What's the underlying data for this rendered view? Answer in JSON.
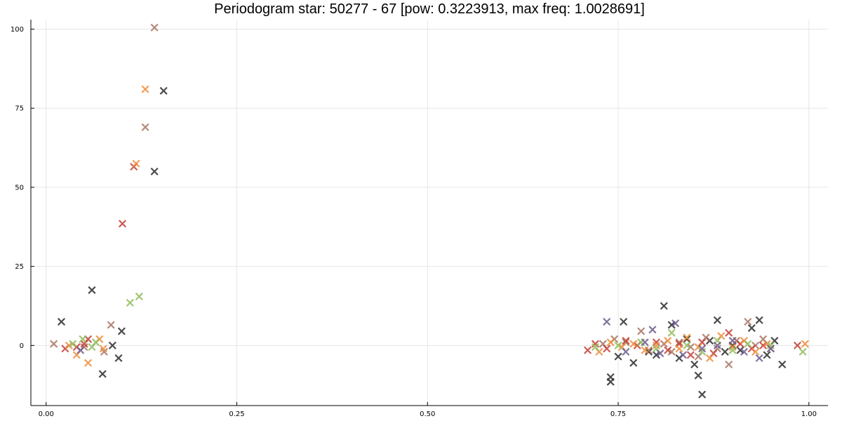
{
  "chart_data": {
    "type": "scatter",
    "title": "Periodogram star: 50277 - 67 [pow: 0.3223913, max freq: 1.0028691]",
    "xlabel": "",
    "ylabel": "",
    "xlim": [
      -0.02,
      1.025
    ],
    "ylim": [
      -19,
      103
    ],
    "x_ticks": [
      0.0,
      0.25,
      0.5,
      0.75,
      1.0
    ],
    "x_tick_labels": [
      "0.00",
      "0.25",
      "0.50",
      "0.75",
      "1.00"
    ],
    "y_ticks": [
      0,
      25,
      50,
      75,
      100
    ],
    "y_tick_labels": [
      "0",
      "25",
      "50",
      "75",
      "100"
    ],
    "grid": true,
    "legend": "none",
    "marker": "x",
    "series": [
      {
        "color": "#2b2b2b",
        "points": [
          [
            0.02,
            7.5
          ],
          [
            0.06,
            17.5
          ],
          [
            0.074,
            -9
          ],
          [
            0.087,
            0
          ],
          [
            0.095,
            -4
          ],
          [
            0.099,
            4.5
          ],
          [
            0.142,
            55
          ],
          [
            0.154,
            80.5
          ],
          [
            0.74,
            -10
          ],
          [
            0.74,
            -11.5
          ],
          [
            0.757,
            7.5
          ],
          [
            0.75,
            -3.5
          ],
          [
            0.77,
            -5.5
          ],
          [
            0.79,
            -2
          ],
          [
            0.81,
            12.5
          ],
          [
            0.82,
            6.5
          ],
          [
            0.8,
            -3
          ],
          [
            0.83,
            -4
          ],
          [
            0.84,
            2
          ],
          [
            0.85,
            -6
          ],
          [
            0.855,
            -9.5
          ],
          [
            0.86,
            -15.5
          ],
          [
            0.87,
            1.5
          ],
          [
            0.88,
            8
          ],
          [
            0.89,
            -2
          ],
          [
            0.9,
            0
          ],
          [
            0.91,
            -1.5
          ],
          [
            0.925,
            5.5
          ],
          [
            0.935,
            8
          ],
          [
            0.945,
            -3
          ],
          [
            0.955,
            1.5
          ],
          [
            0.965,
            -6
          ]
        ]
      },
      {
        "color": "#a87563",
        "points": [
          [
            0.01,
            0.5
          ],
          [
            0.05,
            -0.5
          ],
          [
            0.085,
            6.5
          ],
          [
            0.076,
            -2
          ],
          [
            0.13,
            69
          ],
          [
            0.142,
            100.5
          ],
          [
            0.73,
            0.5
          ],
          [
            0.745,
            2
          ],
          [
            0.76,
            1
          ],
          [
            0.78,
            4.5
          ],
          [
            0.79,
            -1.5
          ],
          [
            0.81,
            0.5
          ],
          [
            0.82,
            -2
          ],
          [
            0.83,
            1
          ],
          [
            0.845,
            -0.5
          ],
          [
            0.855,
            -3.5
          ],
          [
            0.865,
            2.5
          ],
          [
            0.88,
            -1
          ],
          [
            0.895,
            -6
          ],
          [
            0.905,
            1.5
          ],
          [
            0.92,
            7.5
          ],
          [
            0.93,
            0
          ],
          [
            0.94,
            2
          ],
          [
            0.95,
            -1
          ]
        ]
      },
      {
        "color": "#c43c35",
        "points": [
          [
            0.025,
            -1
          ],
          [
            0.04,
            -0.5
          ],
          [
            0.05,
            0.5
          ],
          [
            0.055,
            2
          ],
          [
            0.1,
            38.5
          ],
          [
            0.115,
            56.5
          ],
          [
            0.71,
            -1.5
          ],
          [
            0.72,
            0.5
          ],
          [
            0.735,
            -1
          ],
          [
            0.76,
            1.5
          ],
          [
            0.775,
            0
          ],
          [
            0.8,
            1
          ],
          [
            0.815,
            -1.5
          ],
          [
            0.83,
            0.5
          ],
          [
            0.845,
            -3
          ],
          [
            0.86,
            1
          ],
          [
            0.875,
            -2.5
          ],
          [
            0.895,
            4
          ],
          [
            0.91,
            0.5
          ],
          [
            0.925,
            -1
          ],
          [
            0.94,
            0
          ],
          [
            0.985,
            0
          ]
        ]
      },
      {
        "color": "#ee8c3a",
        "points": [
          [
            0.03,
            0
          ],
          [
            0.04,
            -3
          ],
          [
            0.055,
            -5.5
          ],
          [
            0.07,
            2
          ],
          [
            0.075,
            -1
          ],
          [
            0.118,
            57.5
          ],
          [
            0.13,
            81
          ],
          [
            0.725,
            -2
          ],
          [
            0.74,
            1
          ],
          [
            0.755,
            -0.5
          ],
          [
            0.77,
            0.5
          ],
          [
            0.785,
            -1.5
          ],
          [
            0.8,
            0
          ],
          [
            0.815,
            1.5
          ],
          [
            0.83,
            -1
          ],
          [
            0.84,
            2.5
          ],
          [
            0.855,
            -0.5
          ],
          [
            0.87,
            -4
          ],
          [
            0.885,
            3
          ],
          [
            0.9,
            -0.5
          ],
          [
            0.915,
            1.5
          ],
          [
            0.93,
            -2
          ],
          [
            0.945,
            0.5
          ],
          [
            0.995,
            0.5
          ]
        ]
      },
      {
        "color": "#8fbc5a",
        "points": [
          [
            0.035,
            0.5
          ],
          [
            0.048,
            2
          ],
          [
            0.06,
            -0.5
          ],
          [
            0.065,
            1
          ],
          [
            0.11,
            13.5
          ],
          [
            0.122,
            15.5
          ],
          [
            0.72,
            -0.5
          ],
          [
            0.75,
            0
          ],
          [
            0.78,
            1
          ],
          [
            0.8,
            -1
          ],
          [
            0.82,
            4
          ],
          [
            0.84,
            0
          ],
          [
            0.86,
            -2
          ],
          [
            0.88,
            1.5
          ],
          [
            0.9,
            -1.5
          ],
          [
            0.92,
            0.5
          ],
          [
            0.95,
            0
          ],
          [
            0.992,
            -2
          ]
        ]
      },
      {
        "color": "#6b5a8c",
        "points": [
          [
            0.045,
            -1.5
          ],
          [
            0.735,
            7.5
          ],
          [
            0.76,
            -2
          ],
          [
            0.785,
            1
          ],
          [
            0.795,
            5
          ],
          [
            0.805,
            -2.5
          ],
          [
            0.825,
            7
          ],
          [
            0.835,
            -3
          ],
          [
            0.86,
            -1
          ],
          [
            0.88,
            0
          ],
          [
            0.9,
            1.5
          ],
          [
            0.915,
            -2
          ],
          [
            0.935,
            -4
          ],
          [
            0.95,
            -1
          ]
        ]
      }
    ]
  }
}
